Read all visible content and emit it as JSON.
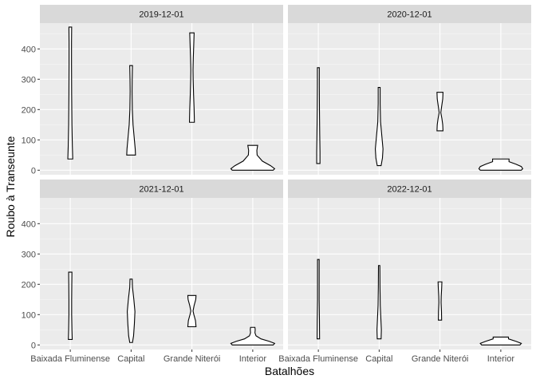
{
  "chart_data": {
    "type": "violin",
    "facet_by": "date",
    "facets": [
      "2019-12-01",
      "2020-12-01",
      "2021-12-01",
      "2022-12-01"
    ],
    "categories": [
      "Baixada Fluminense",
      "Capital",
      "Grande Niterói",
      "Interior"
    ],
    "xlabel": "Batalhões",
    "ylabel": "Roubo à Transeunte",
    "y_ticks": [
      0,
      100,
      200,
      300,
      400
    ],
    "ylim": [
      -15,
      485
    ],
    "grid": true,
    "panels": [
      {
        "facet": "2019-12-01",
        "violins": [
          {
            "category": "Baixada Fluminense",
            "min": 37,
            "max": 472,
            "profile": [
              [
                37,
                0.09
              ],
              [
                80,
                0.075
              ],
              [
                150,
                0.06
              ],
              [
                250,
                0.05
              ],
              [
                350,
                0.045
              ],
              [
                420,
                0.045
              ],
              [
                472,
                0.05
              ]
            ]
          },
          {
            "category": "Capital",
            "min": 50,
            "max": 345,
            "profile": [
              [
                50,
                0.16
              ],
              [
                70,
                0.15
              ],
              [
                110,
                0.11
              ],
              [
                150,
                0.07
              ],
              [
                200,
                0.045
              ],
              [
                260,
                0.035
              ],
              [
                300,
                0.04
              ],
              [
                345,
                0.05
              ]
            ]
          },
          {
            "category": "Grande Niterói",
            "min": 158,
            "max": 453,
            "profile": [
              [
                158,
                0.09
              ],
              [
                200,
                0.08
              ],
              [
                250,
                0.06
              ],
              [
                300,
                0.045
              ],
              [
                330,
                0.04
              ],
              [
                370,
                0.05
              ],
              [
                410,
                0.065
              ],
              [
                453,
                0.08
              ]
            ]
          },
          {
            "category": "Interior",
            "min": 0,
            "max": 82,
            "profile": [
              [
                0,
                0.75
              ],
              [
                5,
                0.8
              ],
              [
                15,
                0.65
              ],
              [
                30,
                0.35
              ],
              [
                50,
                0.16
              ],
              [
                65,
                0.15
              ],
              [
                82,
                0.18
              ]
            ]
          }
        ]
      },
      {
        "facet": "2020-12-01",
        "violins": [
          {
            "category": "Baixada Fluminense",
            "min": 22,
            "max": 338,
            "profile": [
              [
                22,
                0.06
              ],
              [
                60,
                0.06
              ],
              [
                120,
                0.05
              ],
              [
                200,
                0.04
              ],
              [
                280,
                0.035
              ],
              [
                338,
                0.035
              ]
            ]
          },
          {
            "category": "Capital",
            "min": 15,
            "max": 273,
            "profile": [
              [
                15,
                0.07
              ],
              [
                40,
                0.12
              ],
              [
                70,
                0.14
              ],
              [
                110,
                0.1
              ],
              [
                160,
                0.05
              ],
              [
                220,
                0.035
              ],
              [
                273,
                0.035
              ]
            ]
          },
          {
            "category": "Grande Niterói",
            "min": 130,
            "max": 257,
            "profile": [
              [
                130,
                0.11
              ],
              [
                150,
                0.1
              ],
              [
                170,
                0.07
              ],
              [
                190,
                0.03
              ],
              [
                210,
                0.06
              ],
              [
                235,
                0.1
              ],
              [
                257,
                0.11
              ]
            ]
          },
          {
            "category": "Interior",
            "min": 0,
            "max": 37,
            "profile": [
              [
                0,
                0.75
              ],
              [
                5,
                0.8
              ],
              [
                12,
                0.75
              ],
              [
                20,
                0.55
              ],
              [
                28,
                0.3
              ],
              [
                37,
                0.3
              ]
            ]
          }
        ]
      },
      {
        "facet": "2021-12-01",
        "violins": [
          {
            "category": "Baixada Fluminense",
            "min": 18,
            "max": 240,
            "profile": [
              [
                18,
                0.07
              ],
              [
                50,
                0.06
              ],
              [
                100,
                0.05
              ],
              [
                150,
                0.05
              ],
              [
                200,
                0.055
              ],
              [
                240,
                0.06
              ]
            ]
          },
          {
            "category": "Capital",
            "min": 8,
            "max": 217,
            "profile": [
              [
                8,
                0.05
              ],
              [
                30,
                0.09
              ],
              [
                70,
                0.12
              ],
              [
                110,
                0.14
              ],
              [
                150,
                0.1
              ],
              [
                190,
                0.05
              ],
              [
                217,
                0.04
              ]
            ]
          },
          {
            "category": "Grande Niterói",
            "min": 60,
            "max": 163,
            "profile": [
              [
                60,
                0.15
              ],
              [
                80,
                0.13
              ],
              [
                100,
                0.07
              ],
              [
                112,
                0.04
              ],
              [
                130,
                0.08
              ],
              [
                150,
                0.14
              ],
              [
                163,
                0.15
              ]
            ]
          },
          {
            "category": "Interior",
            "min": 0,
            "max": 58,
            "profile": [
              [
                0,
                0.75
              ],
              [
                5,
                0.8
              ],
              [
                12,
                0.6
              ],
              [
                20,
                0.3
              ],
              [
                30,
                0.12
              ],
              [
                40,
                0.08
              ],
              [
                50,
                0.09
              ],
              [
                58,
                0.08
              ]
            ]
          }
        ]
      },
      {
        "facet": "2022-12-01",
        "violins": [
          {
            "category": "Baixada Fluminense",
            "min": 20,
            "max": 282,
            "profile": [
              [
                20,
                0.045
              ],
              [
                80,
                0.04
              ],
              [
                150,
                0.03
              ],
              [
                220,
                0.03
              ],
              [
                282,
                0.03
              ]
            ]
          },
          {
            "category": "Capital",
            "min": 20,
            "max": 262,
            "profile": [
              [
                20,
                0.07
              ],
              [
                50,
                0.08
              ],
              [
                90,
                0.06
              ],
              [
                130,
                0.04
              ],
              [
                190,
                0.03
              ],
              [
                262,
                0.025
              ]
            ]
          },
          {
            "category": "Grande Niterói",
            "min": 82,
            "max": 208,
            "profile": [
              [
                82,
                0.06
              ],
              [
                110,
                0.055
              ],
              [
                140,
                0.04
              ],
              [
                160,
                0.045
              ],
              [
                185,
                0.06
              ],
              [
                208,
                0.07
              ]
            ]
          },
          {
            "category": "Interior",
            "min": 0,
            "max": 26,
            "profile": [
              [
                0,
                0.7
              ],
              [
                5,
                0.75
              ],
              [
                12,
                0.55
              ],
              [
                20,
                0.28
              ],
              [
                26,
                0.28
              ]
            ]
          }
        ]
      }
    ]
  }
}
